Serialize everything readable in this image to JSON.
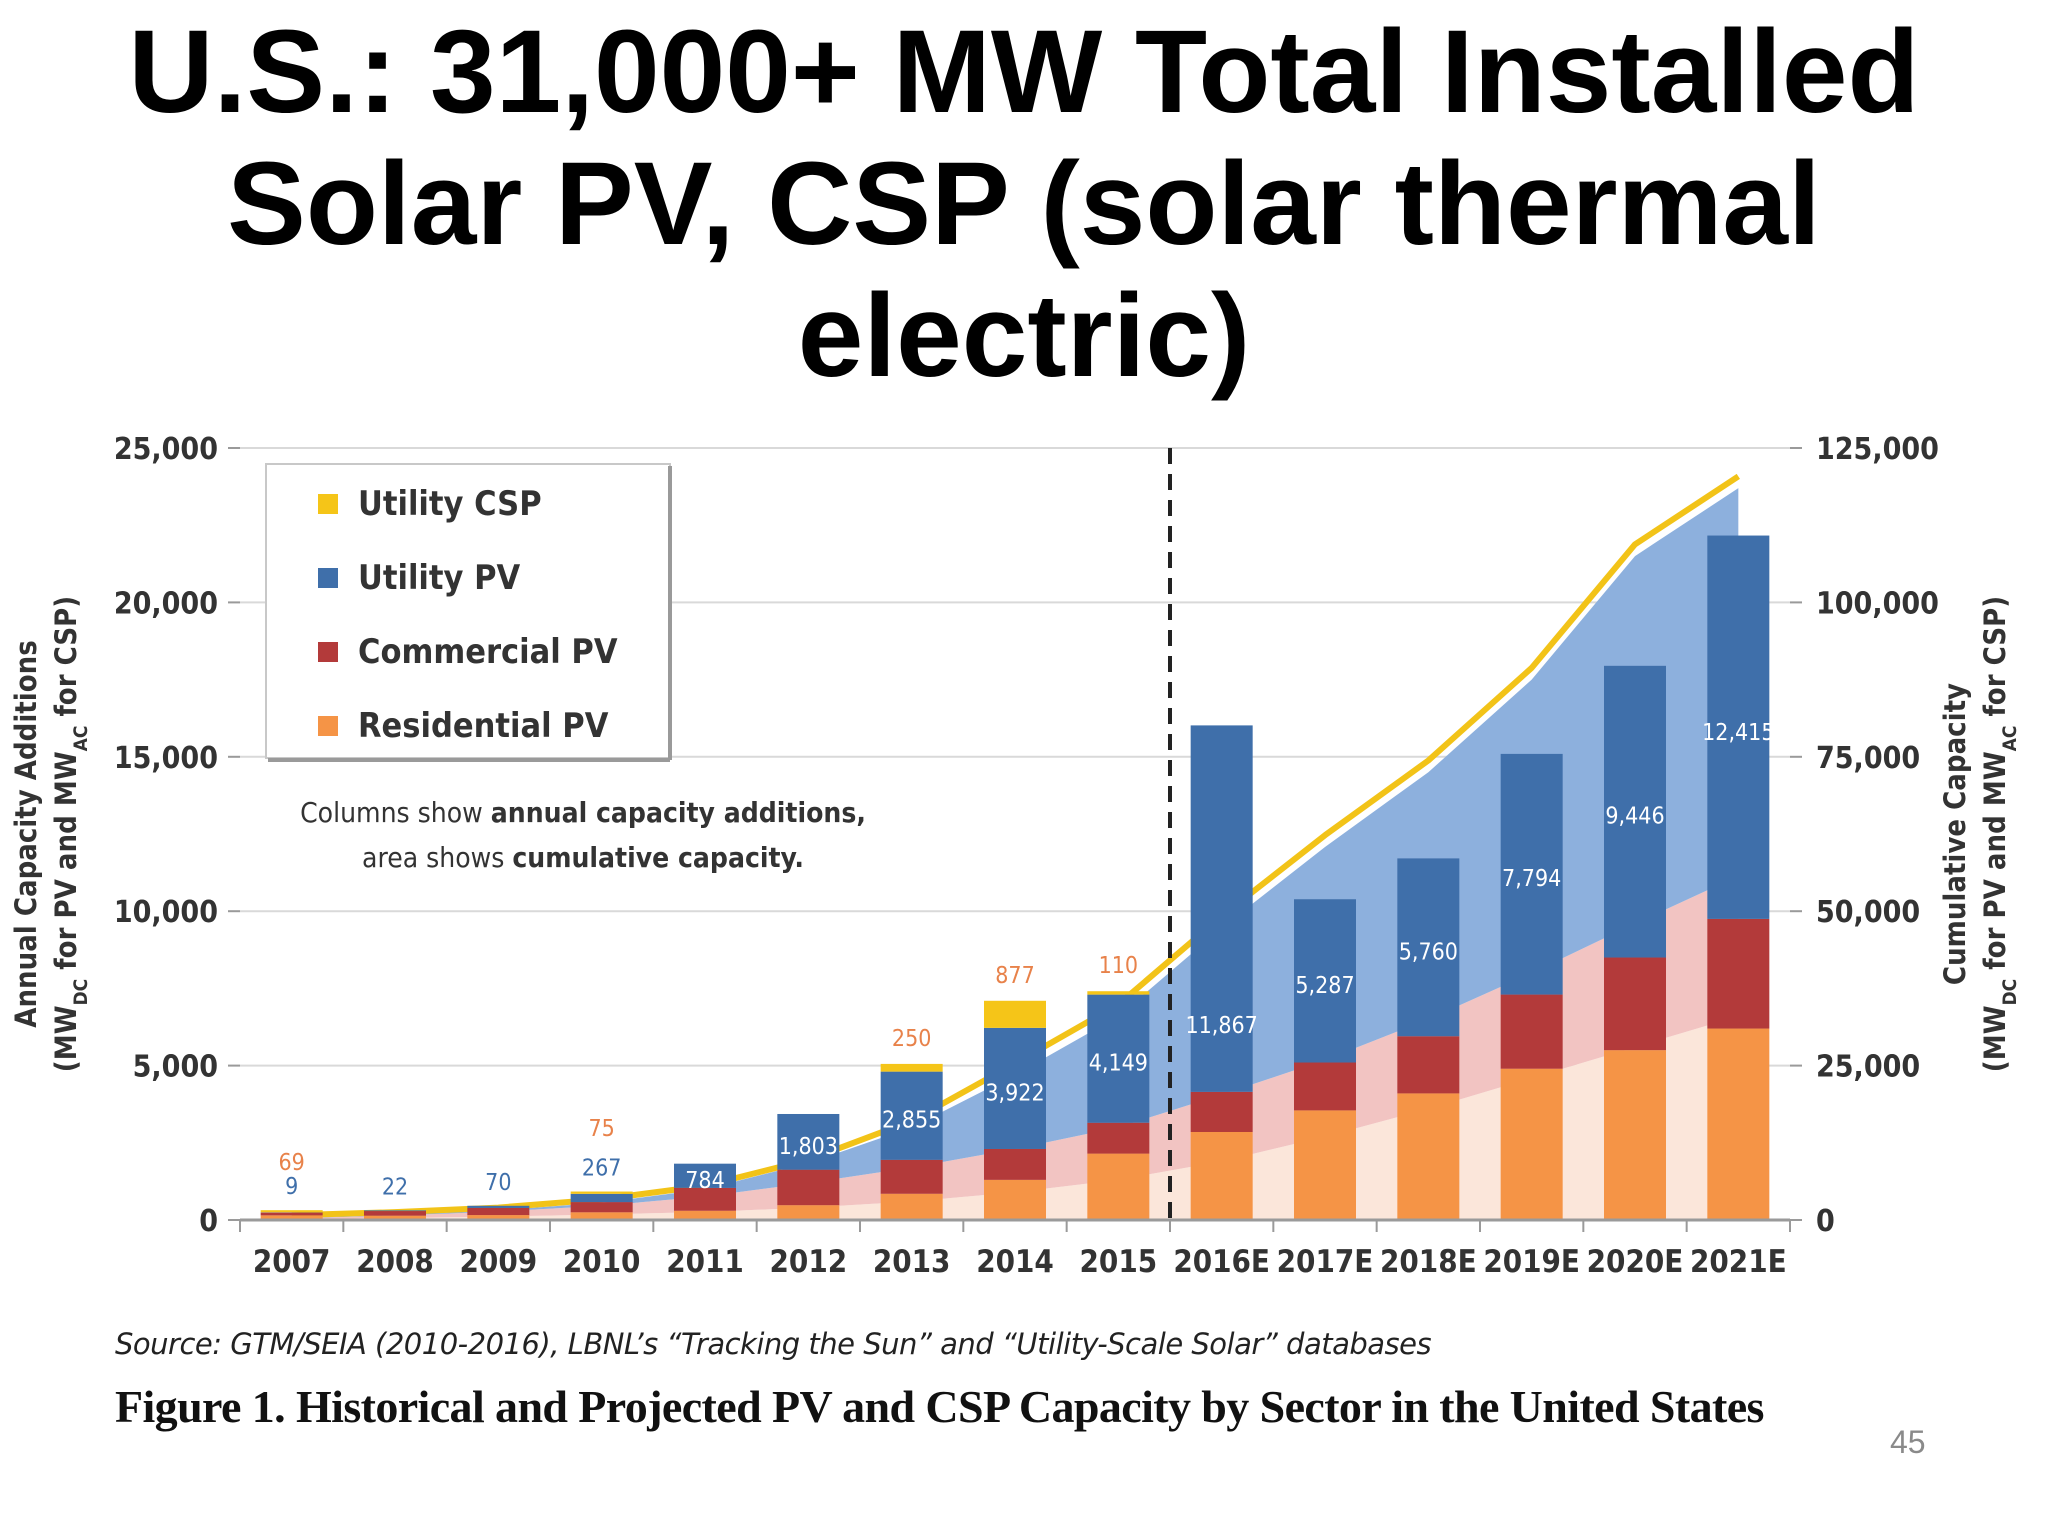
{
  "slide": {
    "title_lines": [
      "U.S.: 31,000+ MW Total Installed",
      "Solar PV, CSP (solar thermal",
      "electric)"
    ],
    "page_number": "45"
  },
  "figure": {
    "source": "Source:  GTM/SEIA (2010-2016), LBNL’s “Tracking the Sun” and “Utility-Scale Solar” databases",
    "caption": "Figure 1. Historical and Projected PV and CSP Capacity by Sector in the United States",
    "note_line1": {
      "normal": "Columns show ",
      "bold": "annual capacity additions,"
    },
    "note_line2": {
      "normal": "area shows ",
      "bold": "cumulative capacity."
    }
  },
  "colors": {
    "utility_csp": "#F5C518",
    "utility_pv": "#3F6FAA",
    "commercial_pv": "#B33A3A",
    "residential_pv": "#F59446",
    "area_utility_pv": "#8DB0DD",
    "area_commercial_pv": "#F2C4C2",
    "area_residential_pv": "#FBE6DA",
    "csp_line": "#F2C318"
  },
  "chart_data": {
    "type": "bar",
    "stacked": true,
    "categories": [
      "2007",
      "2008",
      "2009",
      "2010",
      "2011",
      "2012",
      "2013",
      "2014",
      "2015",
      "2016E",
      "2017E",
      "2018E",
      "2019E",
      "2020E",
      "2021E"
    ],
    "series": [
      {
        "name": "Residential PV",
        "values": [
          150,
          140,
          160,
          250,
          300,
          480,
          850,
          1300,
          2150,
          2850,
          3550,
          4100,
          4900,
          5500,
          6200
        ]
      },
      {
        "name": "Commercial PV",
        "values": [
          90,
          150,
          230,
          330,
          740,
          1150,
          1100,
          1000,
          1000,
          1300,
          1550,
          1850,
          2400,
          3000,
          3550
        ]
      },
      {
        "name": "Utility PV",
        "values": [
          9,
          22,
          70,
          267,
          784,
          1803,
          2855,
          3922,
          4149,
          11867,
          5287,
          5760,
          7794,
          9446,
          12415
        ]
      },
      {
        "name": "Utility CSP",
        "values": [
          69,
          0,
          0,
          75,
          0,
          0,
          250,
          877,
          110,
          0,
          0,
          0,
          0,
          0,
          0
        ]
      }
    ],
    "bar_labels": {
      "utility_pv": [
        "9",
        "22",
        "70",
        "267",
        "784",
        "1,803",
        "2,855",
        "3,922",
        "4,149",
        "11,867",
        "5,287",
        "5,760",
        "7,794",
        "9,446",
        "12,415"
      ],
      "utility_csp": [
        "69",
        "",
        "",
        "75",
        "",
        "",
        "250",
        "877",
        "110",
        "",
        "",
        "",
        "",
        "",
        ""
      ]
    },
    "cumulative": {
      "residential_pv": [
        120,
        320,
        560,
        900,
        1300,
        2000,
        3000,
        4500,
        6500,
        9500,
        13500,
        18000,
        23000,
        28000,
        33000
      ],
      "commercial_pv": [
        150,
        400,
        800,
        1400,
        2500,
        4000,
        5500,
        7000,
        8500,
        10800,
        12400,
        14500,
        17000,
        20000,
        22700
      ],
      "utility_pv": [
        50,
        100,
        200,
        500,
        1200,
        3200,
        6500,
        12000,
        18000,
        27000,
        34500,
        40000,
        47500,
        59500,
        62800
      ],
      "utility_csp": [
        450,
        450,
        450,
        550,
        550,
        550,
        1050,
        1850,
        1900,
        1900,
        1900,
        1900,
        1900,
        1900,
        1900
      ]
    },
    "ylabel": "Annual Capacity Additions",
    "ylabel_line2": {
      "pre": "(MW",
      "sub1": "DC",
      "mid": " for PV and MW",
      "sub2": "AC",
      "post": " for CSP)"
    },
    "y2label": "Cumulative Capacity",
    "y2label_line2": {
      "pre": "(MW",
      "sub1": "DC",
      "mid": " for PV and MW",
      "sub2": "AC",
      "post": " for CSP)"
    },
    "ylim": [
      0,
      25000
    ],
    "y2lim": [
      0,
      125000
    ],
    "yticks": [
      "0",
      "5,000",
      "10,000",
      "15,000",
      "20,000",
      "25,000"
    ],
    "y2ticks": [
      "0",
      "25,000",
      "50,000",
      "75,000",
      "100,000",
      "125,000"
    ],
    "legend": {
      "placement": "top-left",
      "entries": [
        "Utility CSP",
        "Utility PV",
        "Commercial PV",
        "Residential PV"
      ]
    },
    "divider_after": "2015",
    "grid": true
  }
}
